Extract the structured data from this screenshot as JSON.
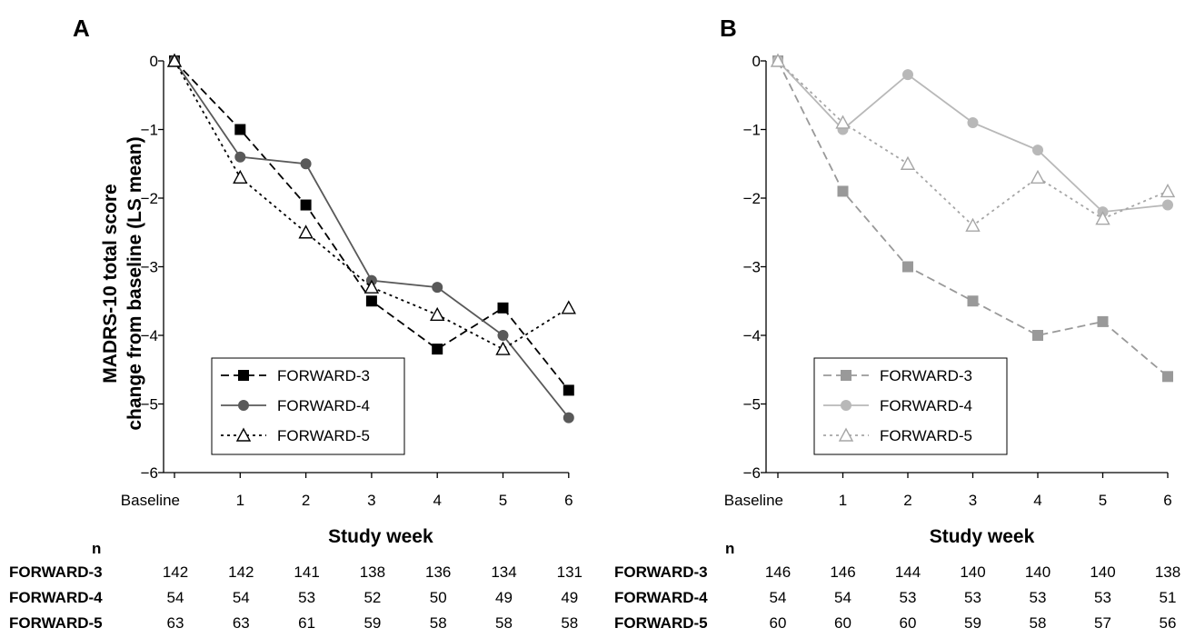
{
  "figure": {
    "y_axis_title_line1": "MADRS-10 total score",
    "y_axis_title_line2": "change from baseline (LS mean)",
    "n_header": "n"
  },
  "chart_data": [
    {
      "panel": "A",
      "type": "line",
      "x": [
        "Baseline",
        "1",
        "2",
        "3",
        "4",
        "5",
        "6"
      ],
      "xlabel": "Study week",
      "ylim": [
        -6,
        0
      ],
      "yticks": [
        "0",
        "−1",
        "−2",
        "−3",
        "−4",
        "−5",
        "−6"
      ],
      "legend_position": "bottom-left",
      "series": [
        {
          "name": "FORWARD-3",
          "marker": "square",
          "line": "dashed",
          "color": "#000000",
          "marker_fill": "#000000",
          "values": [
            0,
            -1.0,
            -2.1,
            -3.5,
            -4.2,
            -3.6,
            -4.8
          ],
          "n": [
            "142",
            "142",
            "141",
            "138",
            "136",
            "134",
            "131"
          ]
        },
        {
          "name": "FORWARD-4",
          "marker": "circle",
          "line": "solid",
          "color": "#595959",
          "marker_fill": "#595959",
          "values": [
            0,
            -1.4,
            -1.5,
            -3.2,
            -3.3,
            -4.0,
            -5.2
          ],
          "n": [
            "54",
            "54",
            "53",
            "52",
            "50",
            "49",
            "49"
          ]
        },
        {
          "name": "FORWARD-5",
          "marker": "triangle-open",
          "line": "dotted",
          "color": "#000000",
          "marker_fill": "#ffffff",
          "values": [
            0,
            -1.7,
            -2.5,
            -3.3,
            -3.7,
            -4.2,
            -3.6
          ],
          "n": [
            "63",
            "63",
            "61",
            "59",
            "58",
            "58",
            "58"
          ]
        }
      ]
    },
    {
      "panel": "B",
      "type": "line",
      "x": [
        "Baseline",
        "1",
        "2",
        "3",
        "4",
        "5",
        "6"
      ],
      "xlabel": "Study week",
      "ylim": [
        -6,
        0
      ],
      "yticks": [
        "0",
        "−1",
        "−2",
        "−3",
        "−4",
        "−5",
        "−6"
      ],
      "legend_position": "bottom-left",
      "series": [
        {
          "name": "FORWARD-3",
          "marker": "square",
          "line": "dashed",
          "color": "#999999",
          "marker_fill": "#999999",
          "values": [
            0,
            -1.9,
            -3.0,
            -3.5,
            -4.0,
            -3.8,
            -4.6
          ],
          "n": [
            "146",
            "146",
            "144",
            "140",
            "140",
            "140",
            "138"
          ]
        },
        {
          "name": "FORWARD-4",
          "marker": "circle",
          "line": "solid",
          "color": "#b8b8b8",
          "marker_fill": "#b8b8b8",
          "values": [
            0,
            -1.0,
            -0.2,
            -0.9,
            -1.3,
            -2.2,
            -2.1
          ],
          "n": [
            "54",
            "54",
            "53",
            "53",
            "53",
            "53",
            "51"
          ]
        },
        {
          "name": "FORWARD-5",
          "marker": "triangle-open",
          "line": "dotted",
          "color": "#a6a6a6",
          "marker_fill": "#ffffff",
          "values": [
            0,
            -0.9,
            -1.5,
            -2.4,
            -1.7,
            -2.3,
            -1.9
          ],
          "n": [
            "60",
            "60",
            "60",
            "59",
            "58",
            "57",
            "56"
          ]
        }
      ]
    }
  ]
}
